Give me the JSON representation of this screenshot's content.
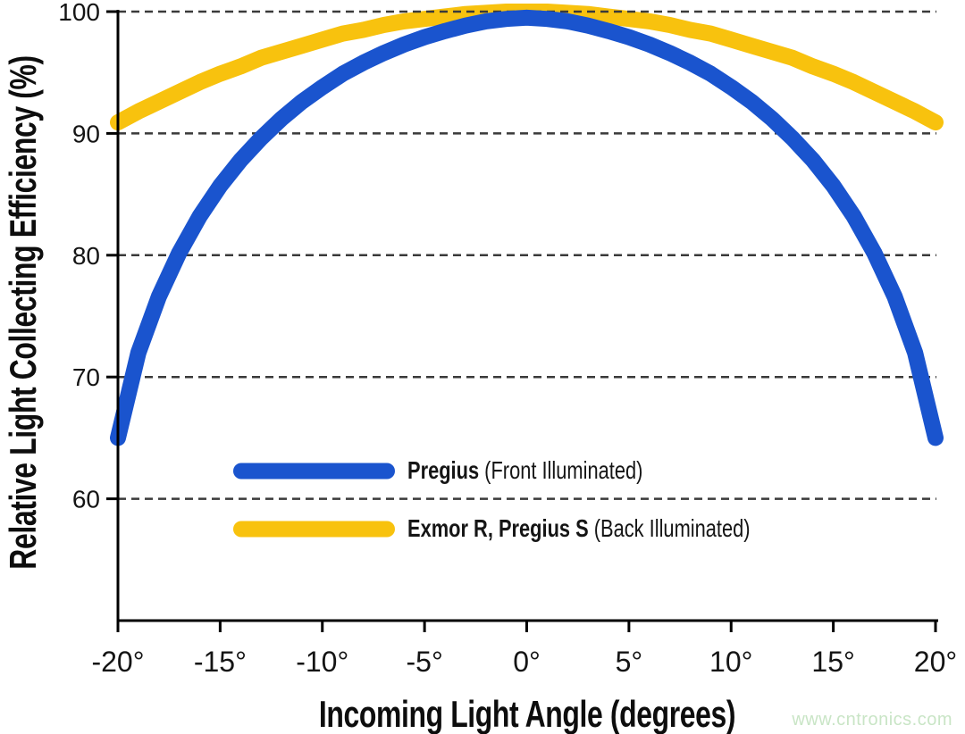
{
  "watermark": {
    "text": "www.cntronics.com",
    "color": "#c9e5c6"
  },
  "chart_data": {
    "type": "line",
    "title": "",
    "xlabel": "Incoming Light Angle (degrees)",
    "ylabel": "Relative Light Collecting Efficiency (%)",
    "xlim": [
      -20,
      20
    ],
    "ylim": [
      50,
      100
    ],
    "grid": "horizontal dashed gridlines at each y tick",
    "legend_position": "inside lower-center",
    "x_ticks": [
      {
        "value": -20,
        "label": "-20°"
      },
      {
        "value": -15,
        "label": "-15°"
      },
      {
        "value": -10,
        "label": "-10°"
      },
      {
        "value": -5,
        "label": "-5°"
      },
      {
        "value": 0,
        "label": "0°"
      },
      {
        "value": 5,
        "label": "5°"
      },
      {
        "value": 10,
        "label": "10°"
      },
      {
        "value": 15,
        "label": "15°"
      },
      {
        "value": 20,
        "label": "20°"
      }
    ],
    "y_ticks": [
      {
        "value": 100,
        "label": "100"
      },
      {
        "value": 90,
        "label": "90"
      },
      {
        "value": 80,
        "label": "80"
      },
      {
        "value": 70,
        "label": "70"
      },
      {
        "value": 60,
        "label": "60"
      }
    ],
    "series": [
      {
        "id": "pregius",
        "name": "Pregius",
        "name_suffix": " (Front Illuminated)",
        "color": "#1A54CE",
        "layer": "over",
        "x_start": -20,
        "x_step": 1,
        "values": [
          65.0,
          72.0,
          76.6,
          80.2,
          83.2,
          85.7,
          87.8,
          89.6,
          91.2,
          92.6,
          93.8,
          94.9,
          95.8,
          96.6,
          97.3,
          97.9,
          98.4,
          98.85,
          99.2,
          99.4,
          99.5,
          99.4,
          99.2,
          98.85,
          98.4,
          97.9,
          97.3,
          96.6,
          95.8,
          94.9,
          93.8,
          92.6,
          91.2,
          89.6,
          87.8,
          85.7,
          83.2,
          80.2,
          76.6,
          72.0,
          65.0
        ]
      },
      {
        "id": "exmor-r-pregius-s",
        "name": "Exmor R, Pregius S",
        "name_suffix": " (Back Illuminated)",
        "color": "#F8C20E",
        "layer": "under",
        "x_start": -20,
        "x_step": 1,
        "values": [
          90.9,
          91.8,
          92.6,
          93.4,
          94.2,
          94.9,
          95.5,
          96.2,
          96.7,
          97.2,
          97.7,
          98.2,
          98.5,
          98.9,
          99.2,
          99.4,
          99.6,
          99.8,
          99.9,
          100.0,
          100.0,
          100.0,
          99.9,
          99.8,
          99.6,
          99.4,
          99.2,
          98.9,
          98.5,
          98.2,
          97.7,
          97.2,
          96.7,
          96.2,
          95.5,
          94.9,
          94.2,
          93.4,
          92.6,
          91.8,
          90.9
        ]
      }
    ]
  }
}
